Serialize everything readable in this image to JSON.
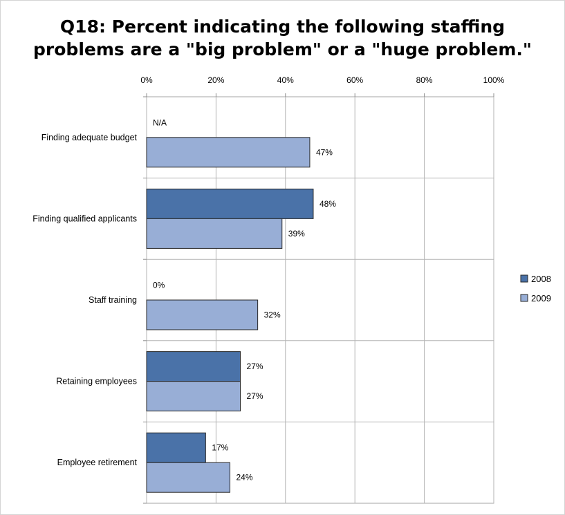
{
  "chart_data": {
    "type": "bar",
    "orientation": "horizontal",
    "title_lines": [
      "Q18: Percent indicating the following staffing",
      "problems are a \"big problem\" or a \"huge problem.\""
    ],
    "categories": [
      "Finding adequate budget",
      "Finding qualified applicants",
      "Staff training",
      "Retaining employees",
      "Employee retirement"
    ],
    "series": [
      {
        "name": "2008",
        "color": "#4a72a8",
        "values": [
          null,
          48,
          0,
          27,
          17
        ],
        "labels": [
          "N/A",
          "48%",
          "0%",
          "27%",
          "17%"
        ]
      },
      {
        "name": "2009",
        "color": "#98aed6",
        "values": [
          47,
          39,
          32,
          27,
          24
        ],
        "labels": [
          "47%",
          "39%",
          "32%",
          "27%",
          "24%"
        ]
      }
    ],
    "x_ticks": [
      "0%",
      "20%",
      "40%",
      "60%",
      "80%",
      "100%"
    ],
    "xlim": [
      0,
      100
    ],
    "axis_position": "top",
    "grid": true,
    "legend_position": "right"
  }
}
